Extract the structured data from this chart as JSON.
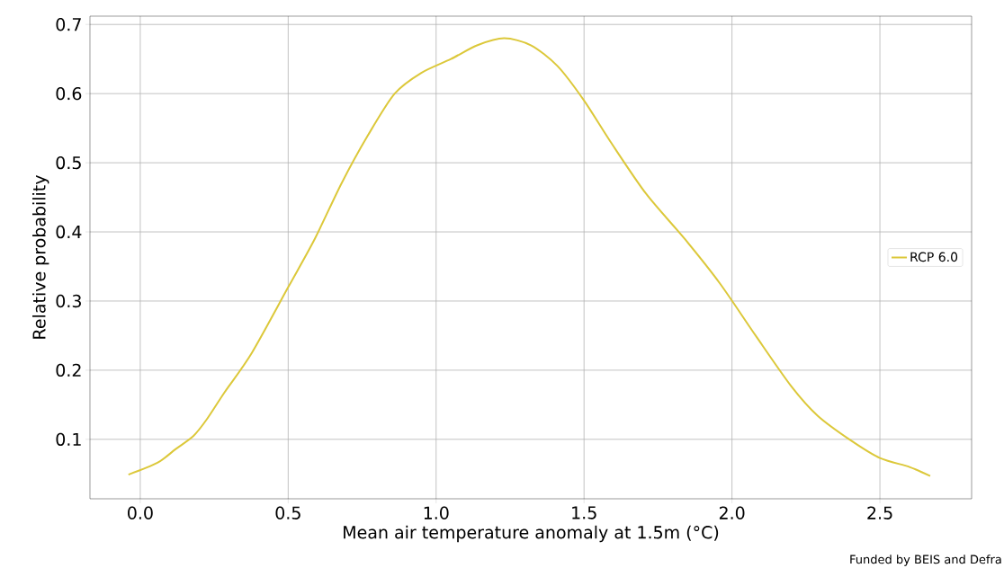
{
  "chart_data": {
    "type": "line",
    "xlabel": "Mean air temperature anomaly at 1.5m (°C)",
    "ylabel": "Relative probability",
    "annotations": [
      "Funded by BEIS and Defra"
    ],
    "xlim": [
      -0.17,
      2.81
    ],
    "ylim": [
      0.014,
      0.712
    ],
    "xticks": [
      {
        "value": 0,
        "label": "0.0"
      },
      0.5,
      {
        "value": 1,
        "label": "1.0"
      },
      1.5,
      {
        "value": 2,
        "label": "2.0"
      },
      2.5
    ],
    "yticks": [
      0.1,
      0.2,
      0.3,
      0.4,
      0.5,
      0.6,
      0.7
    ],
    "grid": true,
    "legend": "right",
    "series": [
      {
        "name": "RCP 6.0",
        "color": "#dcc83a",
        "x": [
          -0.04,
          0.058,
          0.12,
          0.18,
          0.225,
          0.285,
          0.377,
          0.5,
          0.59,
          0.68,
          0.77,
          0.86,
          0.95,
          1.05,
          1.14,
          1.23,
          1.32,
          1.41,
          1.5,
          1.59,
          1.71,
          1.84,
          1.96,
          2.08,
          2.2,
          2.29,
          2.4,
          2.5,
          2.6,
          2.67
        ],
        "values": [
          0.049,
          0.066,
          0.086,
          0.105,
          0.129,
          0.168,
          0.225,
          0.32,
          0.39,
          0.47,
          0.54,
          0.6,
          0.63,
          0.65,
          0.67,
          0.68,
          0.67,
          0.64,
          0.59,
          0.53,
          0.455,
          0.39,
          0.325,
          0.25,
          0.177,
          0.134,
          0.099,
          0.073,
          0.06,
          0.047
        ]
      }
    ]
  }
}
